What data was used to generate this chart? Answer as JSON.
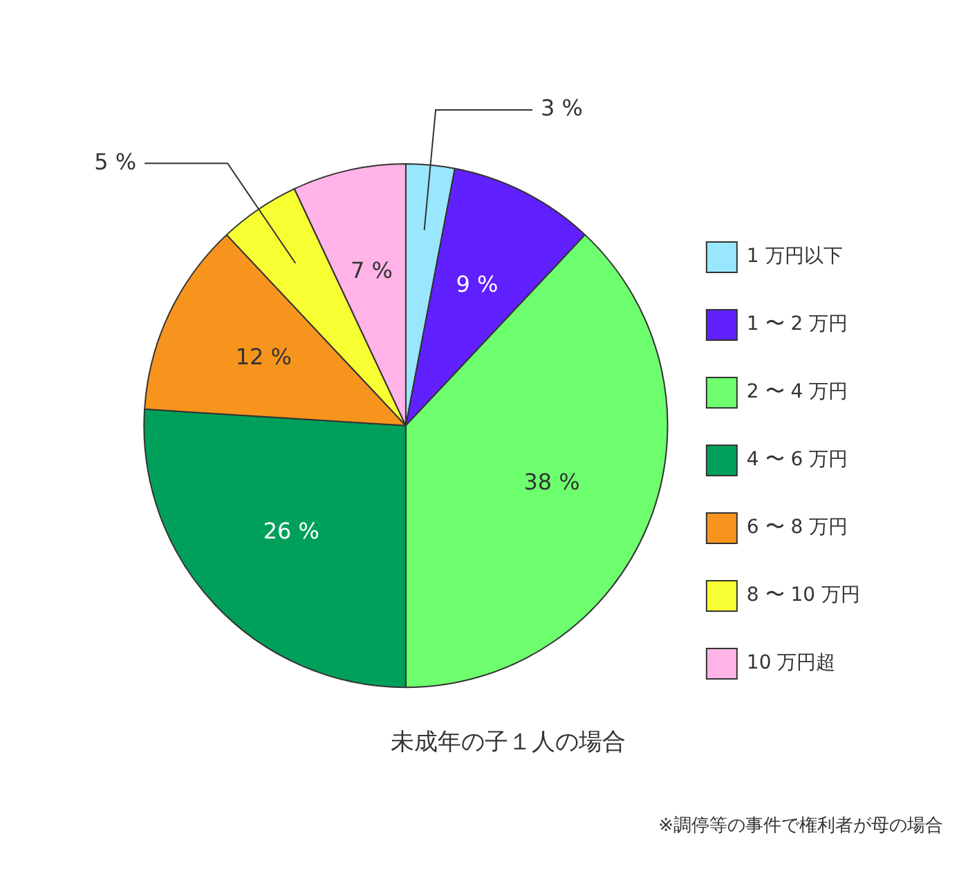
{
  "chart_data": {
    "type": "pie",
    "title": "未成年の子１人の場合",
    "categories": [
      "1 万円以下",
      "1 〜 2 万円",
      "2 〜 4 万円",
      "4 〜 6 万円",
      "6 〜 8 万円",
      "8 〜 10 万円",
      "10 万円超"
    ],
    "values": [
      3,
      9,
      38,
      26,
      12,
      5,
      7
    ],
    "colors": [
      "#99e6ff",
      "#6020ff",
      "#6dff6d",
      "#00a05a",
      "#f7941d",
      "#f7ff33",
      "#ffb3e6"
    ],
    "value_labels": [
      "3 %",
      "9 %",
      "38 %",
      "26 %",
      "12 %",
      "5 %",
      "7 %"
    ],
    "legend": "right",
    "annotations": [
      "※調停等の事件で権利者が母の場合"
    ]
  }
}
